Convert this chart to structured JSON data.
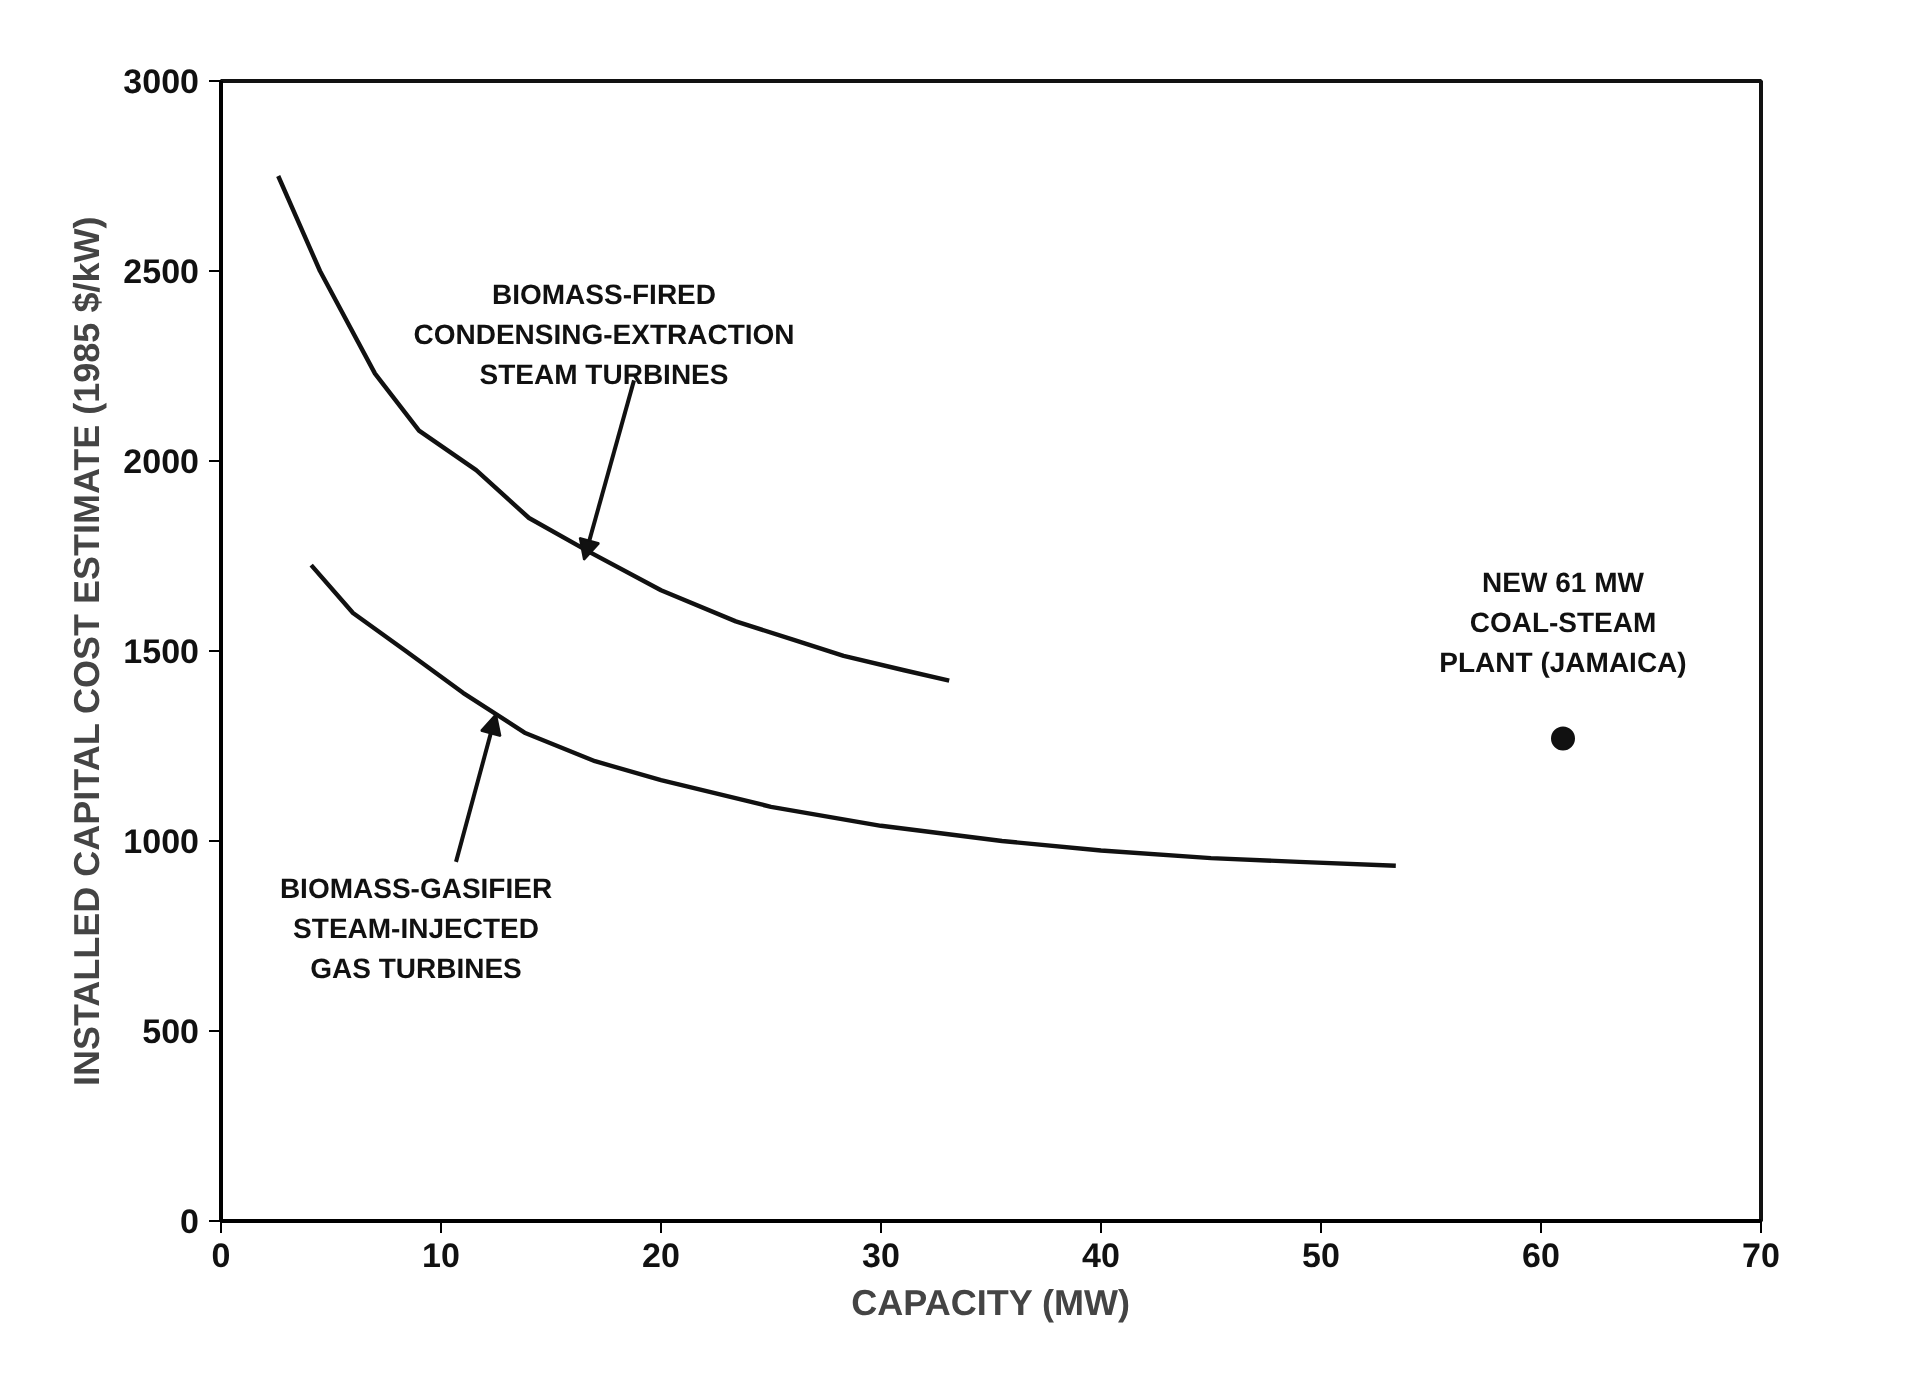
{
  "chart_data": {
    "type": "line",
    "xlabel": "CAPACITY (MW)",
    "ylabel": "INSTALLED CAPITAL COST ESTIMATE (1985 $/kW)",
    "xlim": [
      0,
      70
    ],
    "ylim": [
      0,
      3000
    ],
    "xticks": [
      0,
      10,
      20,
      30,
      40,
      50,
      60,
      70
    ],
    "yticks": [
      0,
      500,
      1000,
      1500,
      2000,
      2500,
      3000
    ],
    "grid": false,
    "marker": "none",
    "line_style": "solid",
    "series": [
      {
        "color": "#111111",
        "x": [
          2.6,
          4.5,
          7.0,
          9.0,
          11.6,
          14.0,
          16.8,
          20.0,
          23.4,
          26.0,
          28.3,
          31.0,
          33.1
        ],
        "values": [
          2750,
          2500,
          2230,
          2080,
          1976,
          1850,
          1759,
          1660,
          1578,
          1530,
          1487,
          1450,
          1422
        ]
      },
      {
        "color": "#111111",
        "x": [
          4.1,
          6.0,
          8.4,
          11.0,
          13.8,
          17.0,
          20.0,
          25.0,
          30.0,
          35.5,
          40.0,
          45.0,
          49.0,
          53.4
        ],
        "values": [
          1726,
          1600,
          1500,
          1390,
          1285,
          1210,
          1160,
          1090,
          1040,
          1000,
          975,
          955,
          945,
          935
        ]
      },
      {
        "type": "scatter",
        "name": "NEW 61 MW\nCOAL-STEAM\nPLANT (JAMAICA)",
        "color": "#111111",
        "marker": "circle",
        "x": [
          61
        ],
        "values": [
          1270
        ]
      }
    ],
    "annotations": [
      {
        "text": "BIOMASS-FIRED\nCONDENSING-EXTRACTION\nSTEAM TURBINES",
        "x": 16.5,
        "y": 1740
      },
      {
        "text": "BIOMASS-GASIFIER\nSTEAM-INJECTED\nGAS TURBINES",
        "x": 12.5,
        "y": 1334
      }
    ]
  }
}
